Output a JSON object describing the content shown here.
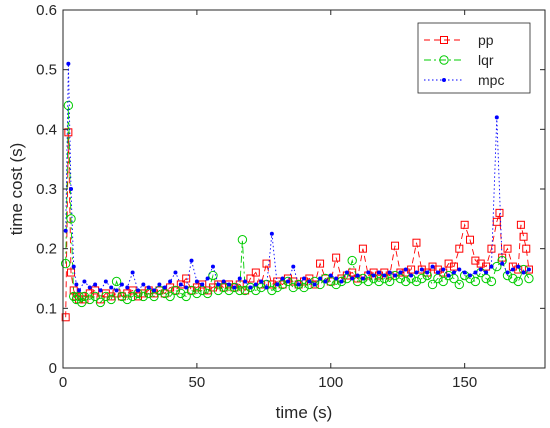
{
  "chart_data": {
    "type": "line",
    "xlabel": "time (s)",
    "ylabel": "time cost (s)",
    "xlim": [
      0,
      180
    ],
    "ylim": [
      0,
      0.6
    ],
    "xticks": [
      0,
      50,
      100,
      150
    ],
    "yticks": [
      0,
      0.1,
      0.2,
      0.3,
      0.4,
      0.5,
      0.6
    ],
    "xtick_labels": [
      "0",
      "50",
      "100",
      "150"
    ],
    "ytick_labels": [
      "0",
      "0.1",
      "0.2",
      "0.3",
      "0.4",
      "0.5",
      "0.6"
    ],
    "grid": false,
    "legend_position": "top-right",
    "series": [
      {
        "name": "pp",
        "color": "#ff0000",
        "line_style": "dashed",
        "marker": "square",
        "x": [
          1,
          2,
          3,
          4,
          5,
          6,
          7,
          8,
          10,
          12,
          14,
          16,
          18,
          20,
          22,
          24,
          26,
          28,
          30,
          32,
          34,
          36,
          38,
          40,
          42,
          44,
          46,
          48,
          50,
          52,
          54,
          56,
          58,
          60,
          62,
          64,
          66,
          68,
          70,
          72,
          74,
          76,
          78,
          80,
          82,
          84,
          86,
          88,
          90,
          92,
          94,
          96,
          98,
          100,
          102,
          104,
          106,
          108,
          110,
          112,
          114,
          116,
          118,
          120,
          122,
          124,
          126,
          128,
          130,
          132,
          134,
          136,
          138,
          140,
          142,
          144,
          146,
          148,
          150,
          152,
          154,
          156,
          158,
          160,
          162,
          163,
          164,
          166,
          168,
          170,
          171,
          172,
          173,
          174
        ],
        "values": [
          0.085,
          0.395,
          0.16,
          0.13,
          0.12,
          0.115,
          0.12,
          0.115,
          0.125,
          0.13,
          0.115,
          0.125,
          0.12,
          0.125,
          0.12,
          0.125,
          0.13,
          0.12,
          0.125,
          0.13,
          0.125,
          0.13,
          0.125,
          0.135,
          0.13,
          0.14,
          0.15,
          0.13,
          0.135,
          0.14,
          0.13,
          0.135,
          0.14,
          0.135,
          0.14,
          0.135,
          0.14,
          0.13,
          0.15,
          0.16,
          0.14,
          0.175,
          0.14,
          0.145,
          0.14,
          0.15,
          0.145,
          0.14,
          0.145,
          0.15,
          0.14,
          0.175,
          0.15,
          0.145,
          0.185,
          0.15,
          0.155,
          0.16,
          0.15,
          0.2,
          0.155,
          0.16,
          0.155,
          0.16,
          0.155,
          0.205,
          0.16,
          0.16,
          0.165,
          0.21,
          0.165,
          0.16,
          0.17,
          0.165,
          0.16,
          0.175,
          0.17,
          0.2,
          0.24,
          0.215,
          0.18,
          0.175,
          0.17,
          0.2,
          0.245,
          0.26,
          0.185,
          0.2,
          0.17,
          0.165,
          0.24,
          0.22,
          0.2,
          0.165
        ]
      },
      {
        "name": "lqr",
        "color": "#00cc00",
        "line_style": "dashdot",
        "marker": "circle",
        "x": [
          1,
          2,
          3,
          4,
          5,
          6,
          7,
          8,
          10,
          12,
          14,
          16,
          18,
          20,
          22,
          24,
          26,
          28,
          30,
          32,
          34,
          36,
          38,
          40,
          42,
          44,
          46,
          48,
          50,
          52,
          54,
          56,
          58,
          60,
          62,
          64,
          66,
          67,
          68,
          70,
          72,
          74,
          76,
          78,
          80,
          82,
          84,
          86,
          88,
          90,
          92,
          94,
          96,
          98,
          100,
          102,
          104,
          106,
          108,
          110,
          112,
          114,
          116,
          118,
          120,
          122,
          124,
          126,
          128,
          130,
          132,
          134,
          136,
          138,
          140,
          142,
          144,
          146,
          148,
          150,
          152,
          154,
          156,
          158,
          160,
          162,
          164,
          166,
          168,
          170,
          172,
          174
        ],
        "values": [
          0.175,
          0.44,
          0.25,
          0.12,
          0.115,
          0.12,
          0.11,
          0.12,
          0.115,
          0.12,
          0.11,
          0.12,
          0.115,
          0.145,
          0.12,
          0.115,
          0.12,
          0.125,
          0.12,
          0.125,
          0.12,
          0.13,
          0.125,
          0.12,
          0.13,
          0.125,
          0.12,
          0.13,
          0.125,
          0.13,
          0.125,
          0.155,
          0.13,
          0.135,
          0.13,
          0.135,
          0.13,
          0.215,
          0.13,
          0.135,
          0.13,
          0.135,
          0.14,
          0.13,
          0.135,
          0.14,
          0.145,
          0.135,
          0.14,
          0.135,
          0.14,
          0.145,
          0.14,
          0.15,
          0.145,
          0.14,
          0.145,
          0.15,
          0.18,
          0.145,
          0.15,
          0.145,
          0.15,
          0.145,
          0.15,
          0.145,
          0.155,
          0.15,
          0.145,
          0.15,
          0.145,
          0.15,
          0.155,
          0.14,
          0.15,
          0.145,
          0.155,
          0.15,
          0.14,
          0.155,
          0.15,
          0.145,
          0.16,
          0.15,
          0.145,
          0.17,
          0.18,
          0.155,
          0.15,
          0.145,
          0.165,
          0.15
        ]
      },
      {
        "name": "mpc",
        "color": "#0000ff",
        "line_style": "dotted",
        "marker": "point",
        "x": [
          1,
          2,
          3,
          4,
          5,
          6,
          8,
          10,
          12,
          14,
          16,
          18,
          20,
          22,
          24,
          26,
          28,
          30,
          32,
          34,
          36,
          38,
          40,
          42,
          44,
          46,
          48,
          50,
          52,
          54,
          56,
          58,
          60,
          62,
          64,
          66,
          68,
          70,
          72,
          74,
          76,
          78,
          80,
          82,
          84,
          86,
          88,
          90,
          92,
          94,
          96,
          98,
          100,
          102,
          104,
          106,
          108,
          110,
          112,
          114,
          116,
          118,
          120,
          122,
          124,
          126,
          128,
          130,
          132,
          134,
          136,
          138,
          140,
          142,
          144,
          146,
          148,
          150,
          152,
          154,
          156,
          158,
          160,
          162,
          164,
          166,
          168,
          170,
          172,
          174
        ],
        "values": [
          0.23,
          0.51,
          0.3,
          0.17,
          0.14,
          0.13,
          0.145,
          0.135,
          0.14,
          0.13,
          0.145,
          0.135,
          0.13,
          0.14,
          0.135,
          0.16,
          0.13,
          0.14,
          0.135,
          0.13,
          0.14,
          0.135,
          0.145,
          0.16,
          0.14,
          0.135,
          0.18,
          0.145,
          0.14,
          0.15,
          0.17,
          0.14,
          0.145,
          0.14,
          0.135,
          0.15,
          0.145,
          0.135,
          0.14,
          0.145,
          0.135,
          0.225,
          0.14,
          0.15,
          0.145,
          0.17,
          0.14,
          0.15,
          0.145,
          0.14,
          0.15,
          0.145,
          0.155,
          0.15,
          0.145,
          0.16,
          0.15,
          0.155,
          0.15,
          0.16,
          0.155,
          0.16,
          0.155,
          0.16,
          0.155,
          0.16,
          0.165,
          0.155,
          0.16,
          0.165,
          0.16,
          0.17,
          0.16,
          0.165,
          0.155,
          0.16,
          0.165,
          0.16,
          0.155,
          0.16,
          0.165,
          0.16,
          0.17,
          0.42,
          0.175,
          0.16,
          0.165,
          0.17,
          0.16,
          0.165
        ]
      }
    ]
  }
}
